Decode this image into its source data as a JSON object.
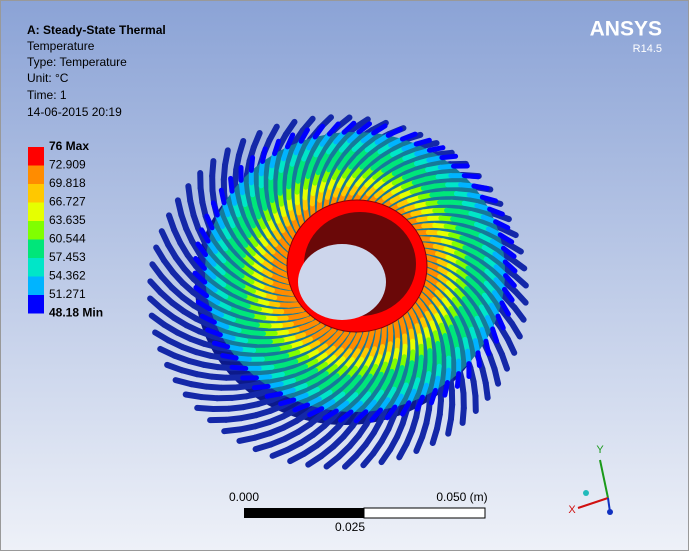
{
  "header": {
    "title": "A: Steady-State Thermal",
    "lines": [
      "Temperature",
      "Type: Temperature",
      "Unit: °C",
      "Time: 1",
      "14-06-2015 20:19"
    ]
  },
  "legend": {
    "labels": [
      "76 Max",
      "72.909",
      "69.818",
      "66.727",
      "63.635",
      "60.544",
      "57.453",
      "54.362",
      "51.271",
      "48.18 Min"
    ],
    "colors": [
      "#ff0000",
      "#ff8c00",
      "#ffc800",
      "#e6ff00",
      "#80ff00",
      "#00e67a",
      "#00e6c8",
      "#00b4ff",
      "#0000ff"
    ]
  },
  "logo": {
    "name": "ANSYS",
    "version": "R14.5"
  },
  "scale_bar": {
    "start": "0.000",
    "end": "0.050 (m)",
    "middle": "0.025"
  },
  "triad": {
    "y": "Y",
    "x": "X"
  }
}
